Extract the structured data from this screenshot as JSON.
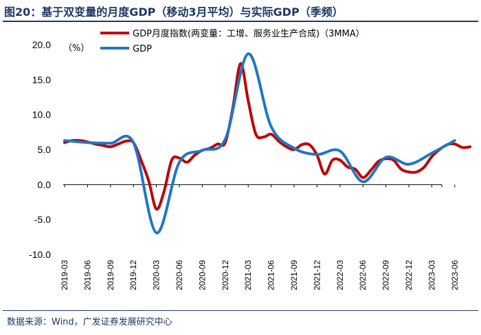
{
  "header": {
    "title": "图20：基于双变量的月度GDP（移动3月平均）与实际GDP（季频）"
  },
  "footer": {
    "source": "数据来源：Wind，广发证券发展研究中心"
  },
  "chart_data": {
    "type": "line",
    "title": "图20：基于双变量的月度GDP（移动3月平均）与实际GDP（季频）",
    "ylabel": "（%）",
    "xlabel": "",
    "ylim": [
      -10,
      20
    ],
    "yticks": [
      -10,
      -5,
      0,
      5,
      10,
      15,
      20
    ],
    "ytick_labels": [
      "-10.0",
      "-5.0",
      "0.0",
      "5.0",
      "10.0",
      "15.0",
      "20.0"
    ],
    "xticks": [
      "2019-03",
      "2019-06",
      "2019-09",
      "2019-12",
      "2020-03",
      "2020-06",
      "2020-09",
      "2020-12",
      "2021-03",
      "2021-06",
      "2021-09",
      "2021-12",
      "2022-03",
      "2022-06",
      "2022-09",
      "2022-12",
      "2023-03",
      "2023-06"
    ],
    "legend_position": "top-left",
    "series": [
      {
        "name": "GDP月度指数(两变量：工增、服务业生产合成)（3MMA）",
        "color": "#c00000",
        "x": [
          "2019-03",
          "2019-04",
          "2019-05",
          "2019-06",
          "2019-07",
          "2019-08",
          "2019-09",
          "2019-10",
          "2019-11",
          "2019-12",
          "2020-01",
          "2020-02",
          "2020-03",
          "2020-04",
          "2020-05",
          "2020-06",
          "2020-07",
          "2020-08",
          "2020-09",
          "2020-10",
          "2020-11",
          "2020-12",
          "2021-01",
          "2021-02",
          "2021-03",
          "2021-04",
          "2021-05",
          "2021-06",
          "2021-07",
          "2021-08",
          "2021-09",
          "2021-10",
          "2021-11",
          "2021-12",
          "2022-01",
          "2022-02",
          "2022-03",
          "2022-04",
          "2022-05",
          "2022-06",
          "2022-07",
          "2022-08",
          "2022-09",
          "2022-10",
          "2022-11",
          "2022-12",
          "2023-01",
          "2023-02",
          "2023-03",
          "2023-04",
          "2023-05",
          "2023-06",
          "2023-07",
          "2023-08"
        ],
        "values": [
          6.0,
          6.3,
          6.3,
          6.1,
          5.8,
          5.6,
          5.4,
          5.8,
          6.2,
          6.0,
          3.5,
          0.5,
          -3.5,
          -1.0,
          3.5,
          3.8,
          3.2,
          4.2,
          4.9,
          5.2,
          5.8,
          6.0,
          11.0,
          17.3,
          12.0,
          7.2,
          6.8,
          7.2,
          6.2,
          5.4,
          5.0,
          5.7,
          5.7,
          4.2,
          1.5,
          3.5,
          3.5,
          2.5,
          2.2,
          1.0,
          2.0,
          3.3,
          3.7,
          3.5,
          2.2,
          1.8,
          1.8,
          2.5,
          4.0,
          5.0,
          5.7,
          5.8,
          5.3,
          5.4
        ]
      },
      {
        "name": "GDP",
        "color": "#1f77c4",
        "x": [
          "2019-03",
          "2019-06",
          "2019-09",
          "2019-12",
          "2020-03",
          "2020-06",
          "2020-09",
          "2020-12",
          "2021-03",
          "2021-06",
          "2021-09",
          "2021-12",
          "2022-03",
          "2022-06",
          "2022-09",
          "2022-12",
          "2023-03",
          "2023-06"
        ],
        "values": [
          6.3,
          6.0,
          5.9,
          6.0,
          -6.9,
          3.2,
          4.9,
          6.5,
          18.7,
          8.3,
          5.2,
          4.3,
          4.8,
          0.4,
          3.9,
          2.9,
          4.5,
          6.3
        ]
      }
    ]
  }
}
